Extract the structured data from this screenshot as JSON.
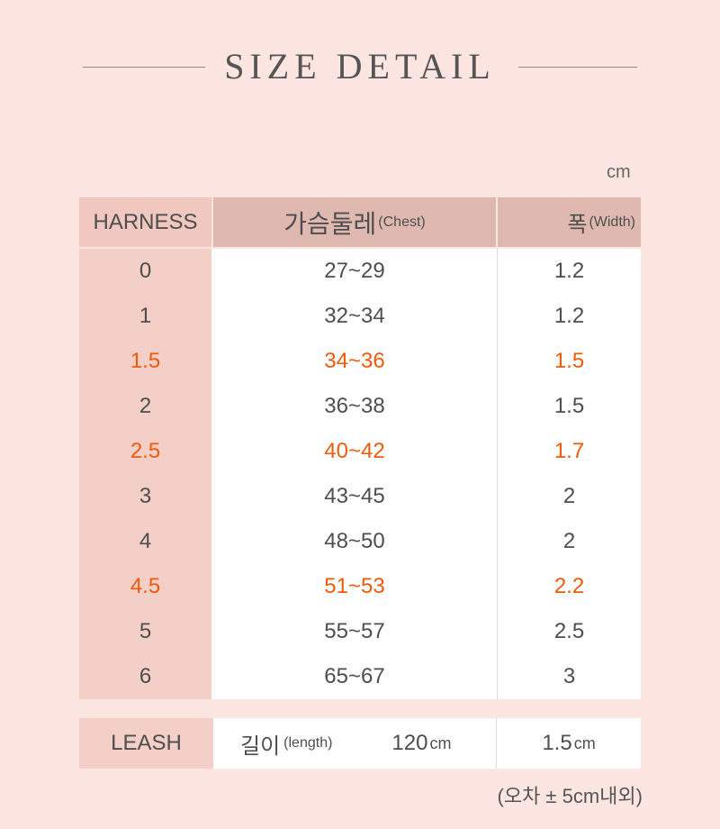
{
  "title": "SIZE DETAIL",
  "unit": "cm",
  "header": {
    "col1": "HARNESS",
    "col2": "가슴둘레",
    "col2_sub": "(Chest)",
    "col3": "폭",
    "col3_sub": "(Width)"
  },
  "highlight_color": "#f15a0a",
  "rows": [
    {
      "size": "0",
      "chest": "27~29",
      "width": "1.2",
      "highlight": false
    },
    {
      "size": "1",
      "chest": "32~34",
      "width": "1.2",
      "highlight": false
    },
    {
      "size": "1.5",
      "chest": "34~36",
      "width": "1.5",
      "highlight": true
    },
    {
      "size": "2",
      "chest": "36~38",
      "width": "1.5",
      "highlight": false
    },
    {
      "size": "2.5",
      "chest": "40~42",
      "width": "1.7",
      "highlight": true
    },
    {
      "size": "3",
      "chest": "43~45",
      "width": "2",
      "highlight": false
    },
    {
      "size": "4",
      "chest": "48~50",
      "width": "2",
      "highlight": false
    },
    {
      "size": "4.5",
      "chest": "51~53",
      "width": "2.2",
      "highlight": true
    },
    {
      "size": "5",
      "chest": "55~57",
      "width": "2.5",
      "highlight": false
    },
    {
      "size": "6",
      "chest": "65~67",
      "width": "3",
      "highlight": false
    }
  ],
  "leash": {
    "label": "LEASH",
    "length_label": "길이",
    "length_sub": "(length)",
    "length_value": "120",
    "length_unit": "cm",
    "width_value": "1.5",
    "width_unit": "cm"
  },
  "note": "(오차 ± 5cm내외)"
}
